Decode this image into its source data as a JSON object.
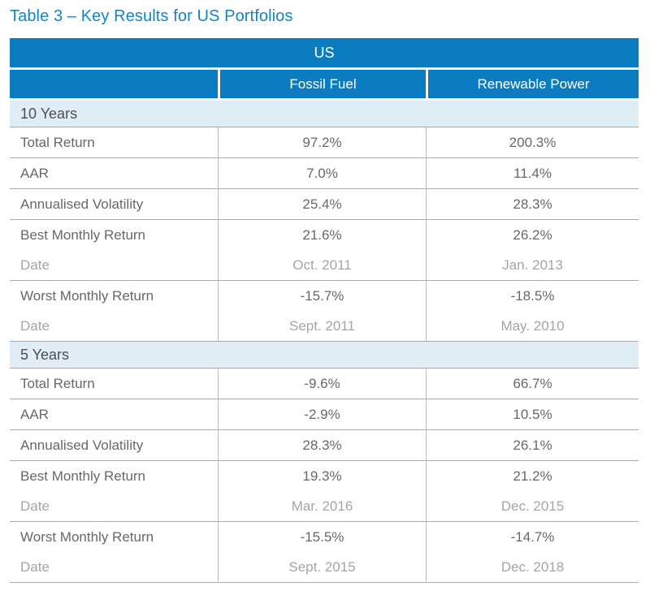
{
  "caption": "Table 3 – Key Results for US Portfolios",
  "colors": {
    "caption_blue": "#1583C6",
    "header_blue": "#0C7CC2",
    "section_band_blue": "#DEEDF6",
    "body_text_gray": "#686868",
    "date_text_gray": "#A5A5A5",
    "border_gray": "#ABABAB"
  },
  "table": {
    "region_header": "US",
    "columns": {
      "label": "",
      "col1": "Fossil Fuel",
      "col2": "Renewable Power"
    },
    "sections": [
      {
        "label": "10 Years",
        "rows": [
          {
            "label": "Total Return",
            "fossil": "97.2%",
            "renewable": "200.3%"
          },
          {
            "label": "AAR",
            "fossil": "7.0%",
            "renewable": "11.4%"
          },
          {
            "label": "Annualised Volatility",
            "fossil": "25.4%",
            "renewable": "28.3%"
          },
          {
            "label": "Best Monthly Return",
            "fossil": "21.6%",
            "renewable": "26.2%",
            "date_label": "Date",
            "fossil_date": "Oct. 2011",
            "renewable_date": "Jan. 2013"
          },
          {
            "label": "Worst Monthly Return",
            "fossil": "-15.7%",
            "renewable": "-18.5%",
            "date_label": "Date",
            "fossil_date": "Sept. 2011",
            "renewable_date": "May. 2010"
          }
        ]
      },
      {
        "label": "5 Years",
        "rows": [
          {
            "label": "Total Return",
            "fossil": "-9.6%",
            "renewable": "66.7%"
          },
          {
            "label": "AAR",
            "fossil": "-2.9%",
            "renewable": "10.5%"
          },
          {
            "label": "Annualised Volatility",
            "fossil": "28.3%",
            "renewable": "26.1%"
          },
          {
            "label": "Best Monthly Return",
            "fossil": "19.3%",
            "renewable": "21.2%",
            "date_label": "Date",
            "fossil_date": "Mar. 2016",
            "renewable_date": "Dec. 2015"
          },
          {
            "label": "Worst Monthly Return",
            "fossil": "-15.5%",
            "renewable": "-14.7%",
            "date_label": "Date",
            "fossil_date": "Sept. 2015",
            "renewable_date": "Dec. 2018"
          }
        ]
      }
    ]
  }
}
